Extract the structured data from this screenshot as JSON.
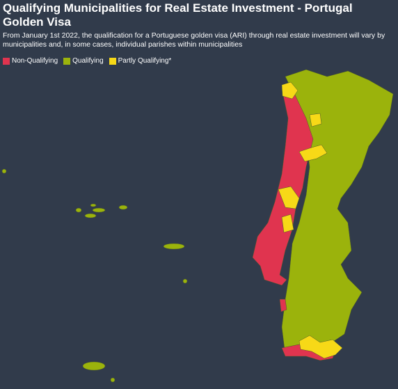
{
  "header": {
    "title": "Qualifying Municipalities for Real Estate Investment - Portugal Golden Visa",
    "subtitle": "From January 1st 2022, the qualification for a Portuguese golden visa (ARI) through real estate investment will vary by municipalities and, in some cases, individual parishes within municipalities"
  },
  "legend": [
    {
      "label": "Non-Qualifying",
      "color": "#e0344f"
    },
    {
      "label": "Qualifying",
      "color": "#9bb30c"
    },
    {
      "label": "Partly Qualifying*",
      "color": "#f7d917"
    }
  ]
}
